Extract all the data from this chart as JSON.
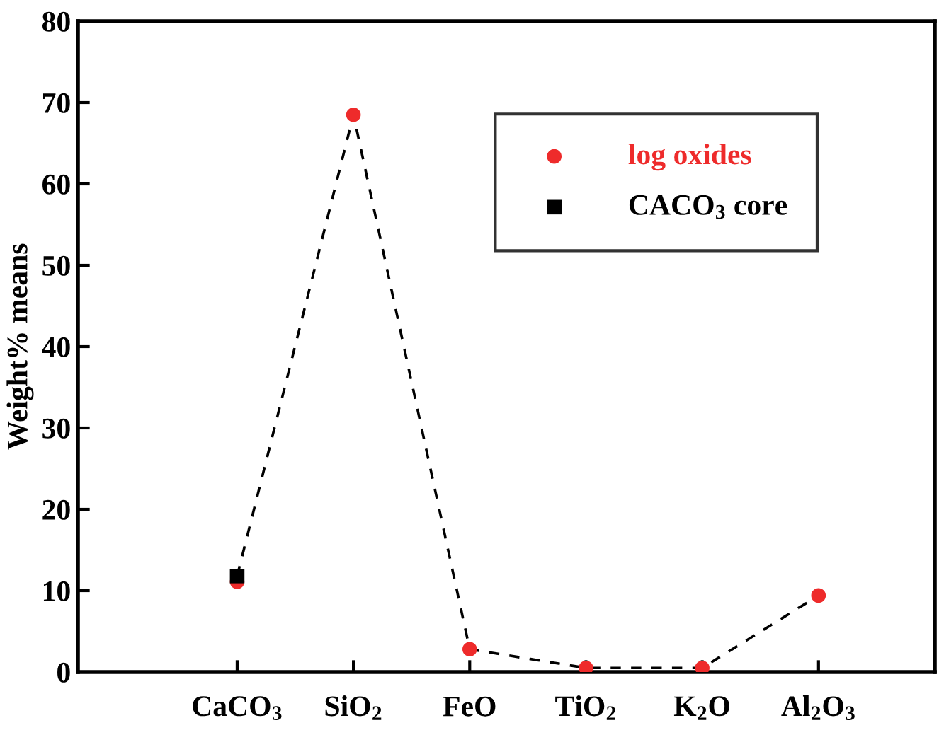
{
  "chart_data": {
    "type": "scatter",
    "ylabel": "Weight% means",
    "categories": [
      "CaCO$_{3}$",
      "SiO$_{2}$",
      "FeO",
      "TiO$_{2}$",
      "K$_{2}$O",
      "Al$_{2}$O$_{3}$"
    ],
    "series": [
      {
        "type": "line",
        "color": "#000000",
        "line_style": "dashed",
        "marker": "none",
        "values": [
          11.8,
          68.5,
          2.8,
          0.5,
          0.5,
          9.4
        ]
      },
      {
        "name": "log oxides",
        "color": "#ee2b2b",
        "marker": "circle",
        "values": [
          11.1,
          68.5,
          2.8,
          0.5,
          0.5,
          9.4
        ]
      },
      {
        "name": "CACO$_{3}$ core",
        "color": "#000000",
        "marker": "square",
        "values": [
          11.8,
          null,
          null,
          null,
          null,
          null
        ]
      }
    ],
    "ylim": [
      0,
      80
    ],
    "yticks": [
      0,
      10,
      20,
      30,
      40,
      50,
      60,
      70,
      80
    ],
    "grid": false,
    "legend": "top right"
  }
}
